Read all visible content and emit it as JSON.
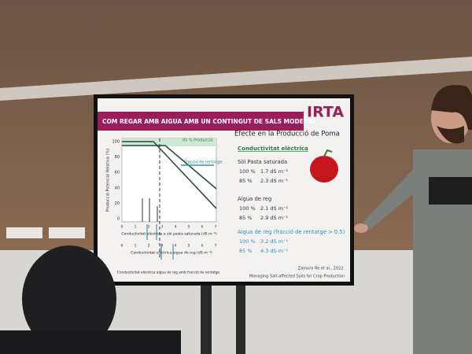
{
  "slide": {
    "title": "COM REGAR AMB AIGUA AMB UN CONTINGUT DE SALS MODERAT",
    "logo": "IRTA",
    "chart": {
      "y_label": "Producció Potencial Relativa (%)",
      "yticks": [
        100,
        80,
        60,
        40,
        20,
        0
      ],
      "annotation_85": "85 % Producció",
      "annotation_leach": "Fracció de rentatge",
      "xticks_1": [
        0,
        1,
        2,
        3,
        4,
        5,
        6,
        7
      ],
      "x_label_1": "Conductivitat elèctrica a sòl pasta saturada (dS m⁻¹)",
      "xticks_2": [
        0,
        1,
        2,
        3,
        4,
        5,
        6,
        7
      ],
      "x_label_2": "Conductivitat elèctrica aigua de reg (dS m⁻¹)",
      "x_label_3": "Conductivitat elèctrica aigua de reg amb fracció de rentatge"
    },
    "heading": "Efecte en la Producció de Poma",
    "subheading": "Conductivitat elèctrica",
    "groups": [
      {
        "label": "Sòl Pasta saturada",
        "rows": [
          {
            "pct": "100 %",
            "value": "1.7 dS m⁻¹"
          },
          {
            "pct": "85 %",
            "value": "2.3 dS m⁻¹"
          }
        ]
      },
      {
        "label": "Aigua de reg",
        "rows": [
          {
            "pct": "100 %",
            "value": "2.1 dS m⁻¹"
          },
          {
            "pct": "85 %",
            "value": "2.9 dS m⁻¹"
          }
        ]
      },
      {
        "label": "Aigua de reg (fracció de rentatge > 0.5)",
        "rows": [
          {
            "pct": "100 %",
            "value": "3.2 dS m⁻¹"
          },
          {
            "pct": "85 %",
            "value": "4.3 dS m⁻¹"
          }
        ]
      }
    ],
    "citation": [
      "Zamora Re et al., 2022.",
      "Managing Salt-affected Soils for Crop Production"
    ]
  }
}
